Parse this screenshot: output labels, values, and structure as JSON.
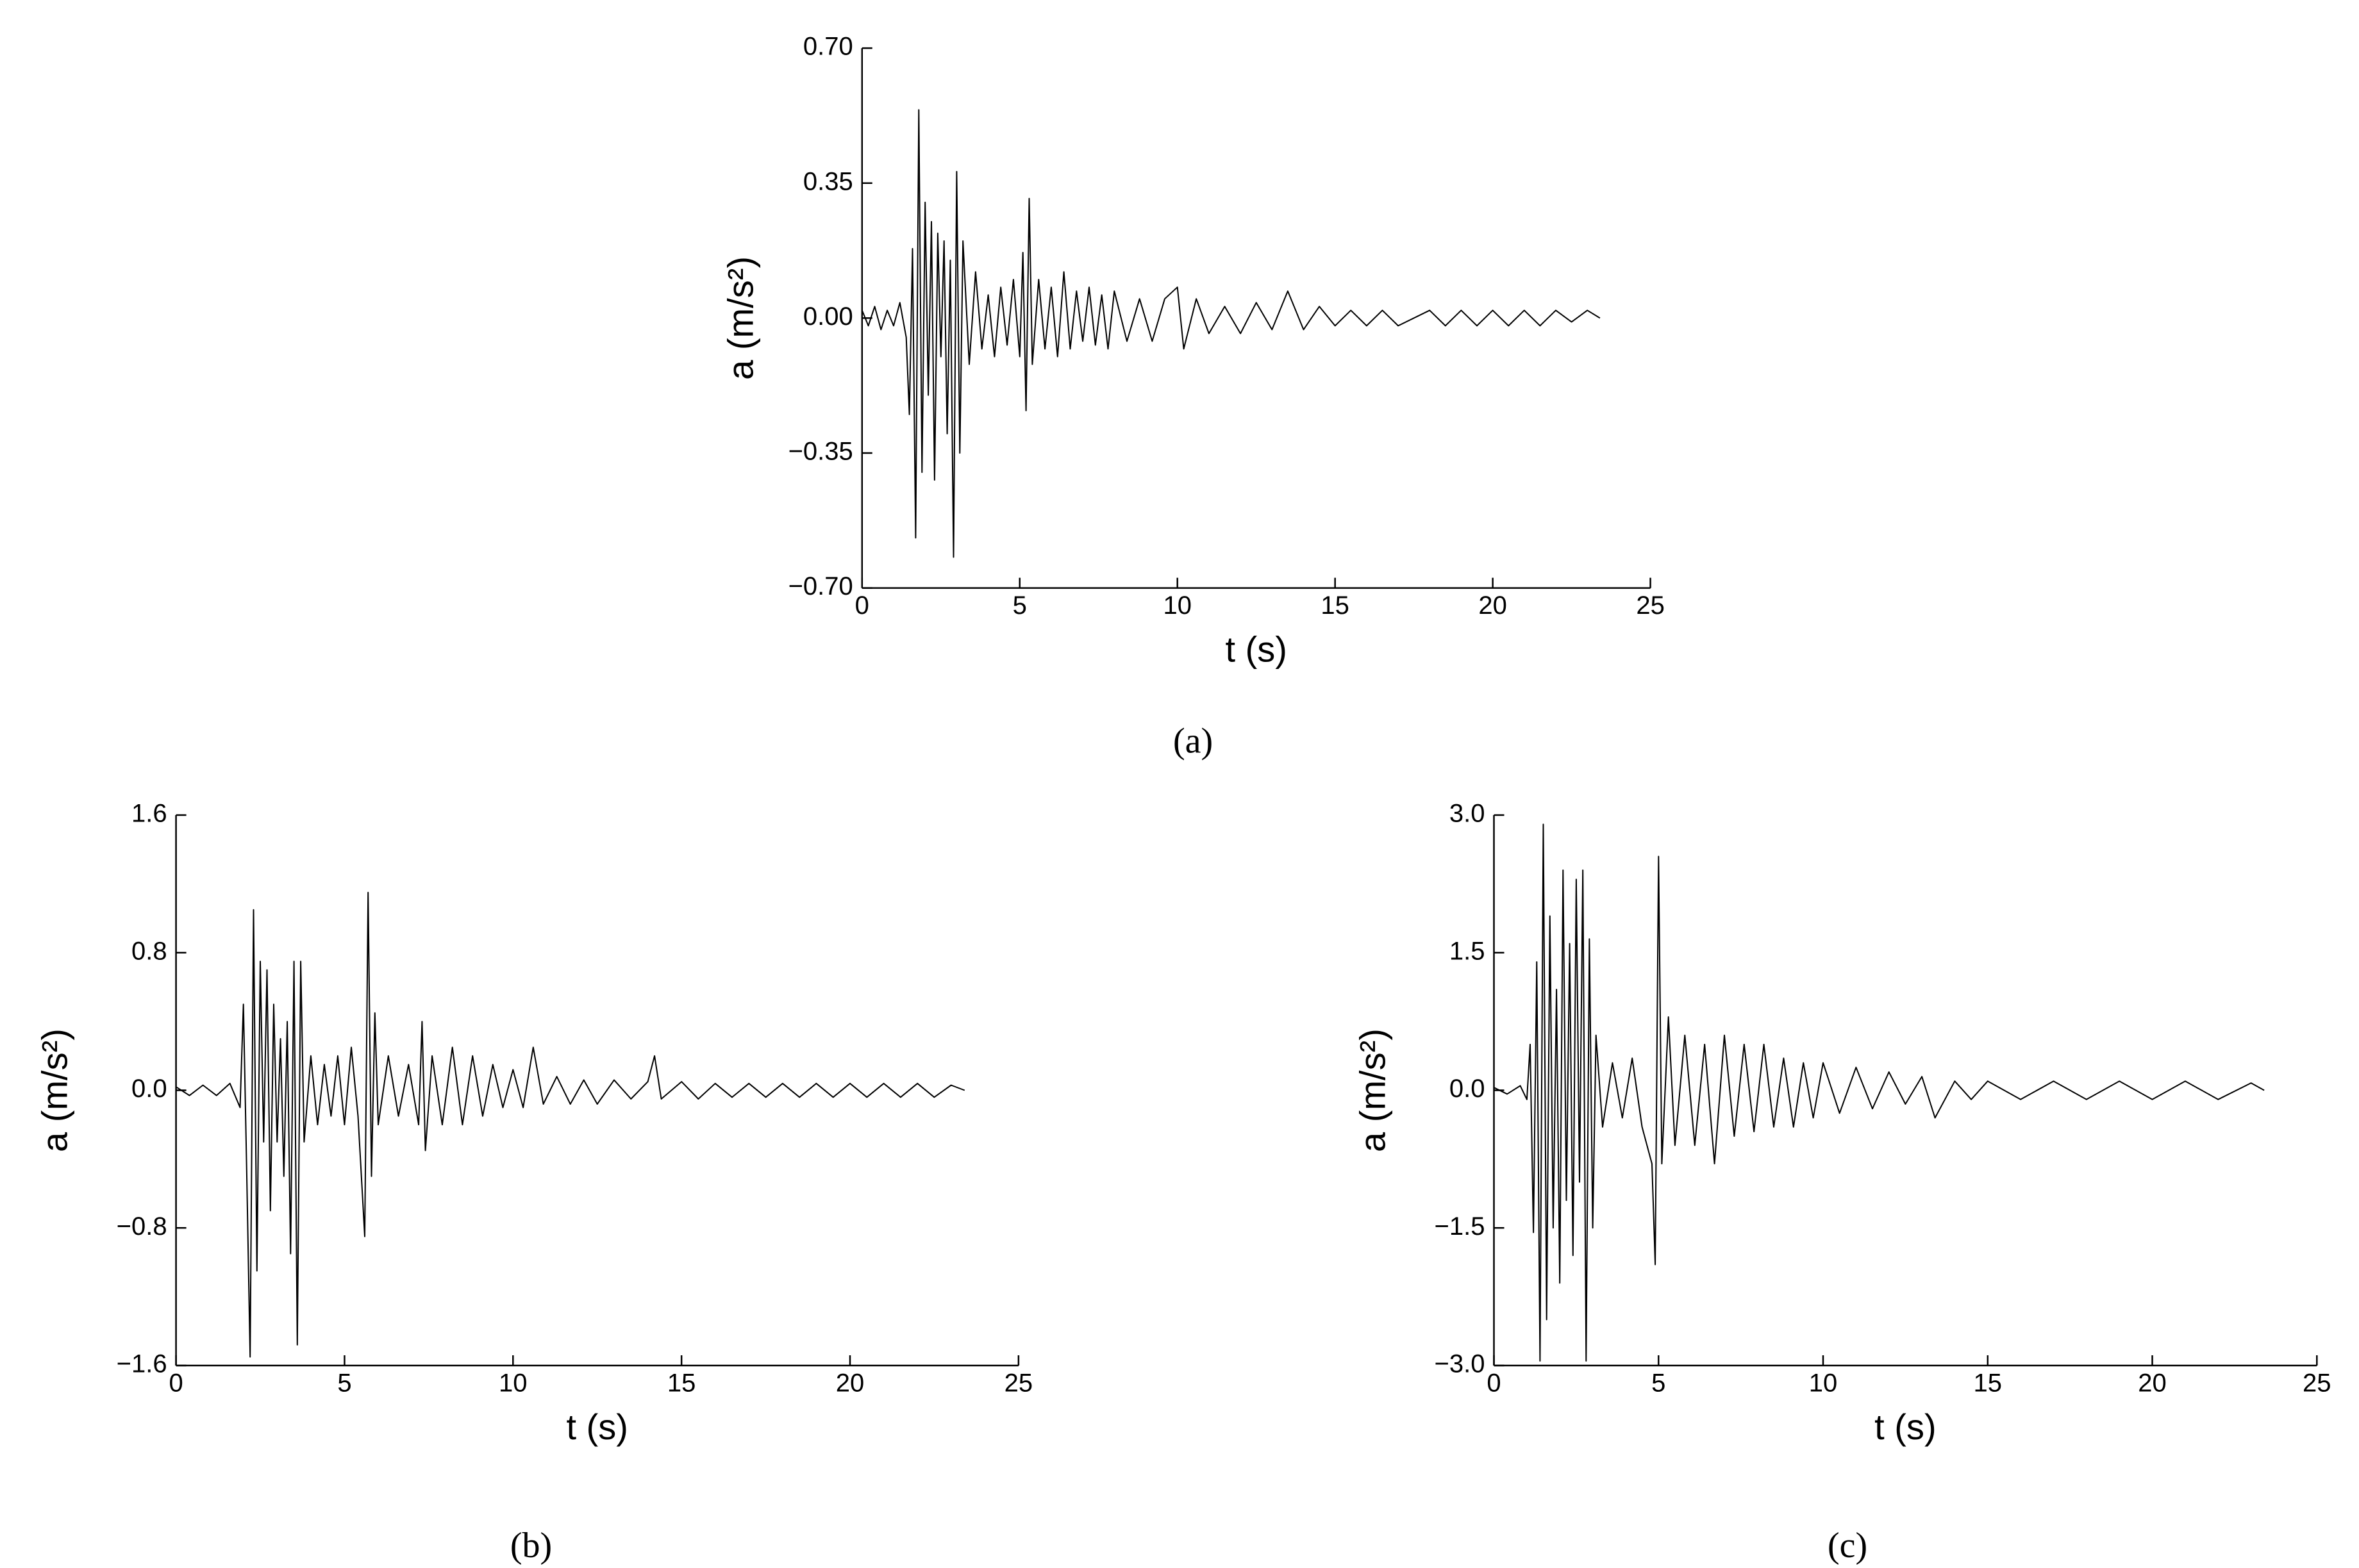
{
  "chart_data": [
    {
      "type": "line",
      "caption": "(a)",
      "x_label": "t (s)",
      "y_label": "a (m/s²)",
      "color": "#000000",
      "xlim": [
        0,
        25
      ],
      "xticks": [
        0,
        5,
        10,
        15,
        20,
        25
      ],
      "ylim": [
        -0.7,
        0.7
      ],
      "yticks": [
        {
          "value": -0.7,
          "label": "−0.70"
        },
        {
          "value": -0.35,
          "label": "−0.35"
        },
        {
          "value": 0,
          "label": "0.00"
        },
        {
          "value": 0.35,
          "label": "0.35"
        },
        {
          "value": 0.7,
          "label": "0.70"
        }
      ],
      "x": [
        0,
        0.2,
        0.4,
        0.6,
        0.8,
        1.0,
        1.2,
        1.4,
        1.5,
        1.6,
        1.7,
        1.8,
        1.9,
        2.0,
        2.1,
        2.2,
        2.3,
        2.4,
        2.5,
        2.6,
        2.7,
        2.8,
        2.9,
        3.0,
        3.1,
        3.2,
        3.4,
        3.6,
        3.8,
        4.0,
        4.2,
        4.4,
        4.6,
        4.8,
        5.0,
        5.1,
        5.2,
        5.3,
        5.4,
        5.6,
        5.8,
        6.0,
        6.2,
        6.4,
        6.6,
        6.8,
        7.0,
        7.2,
        7.4,
        7.6,
        7.8,
        8.0,
        8.4,
        8.8,
        9.2,
        9.6,
        10.0,
        10.2,
        10.6,
        11.0,
        11.5,
        12.0,
        12.5,
        13.0,
        13.5,
        14.0,
        14.5,
        15,
        15.5,
        16,
        16.5,
        17,
        18,
        18.5,
        19,
        19.5,
        20,
        20.5,
        21,
        21.5,
        22,
        22.5,
        23,
        23.4
      ],
      "values": [
        0.02,
        -0.02,
        0.03,
        -0.03,
        0.02,
        -0.02,
        0.04,
        -0.05,
        -0.25,
        0.18,
        -0.57,
        0.54,
        -0.4,
        0.3,
        -0.2,
        0.25,
        -0.42,
        0.22,
        -0.1,
        0.2,
        -0.3,
        0.15,
        -0.62,
        0.38,
        -0.35,
        0.2,
        -0.12,
        0.12,
        -0.08,
        0.06,
        -0.1,
        0.08,
        -0.07,
        0.1,
        -0.1,
        0.17,
        -0.24,
        0.31,
        -0.12,
        0.1,
        -0.08,
        0.08,
        -0.1,
        0.12,
        -0.08,
        0.07,
        -0.06,
        0.08,
        -0.07,
        0.06,
        -0.08,
        0.07,
        -0.06,
        0.05,
        -0.06,
        0.05,
        0.08,
        -0.08,
        0.05,
        -0.04,
        0.03,
        -0.04,
        0.04,
        -0.03,
        0.07,
        -0.03,
        0.03,
        -0.02,
        0.02,
        -0.02,
        0.02,
        -0.02,
        0.02,
        -0.02,
        0.02,
        -0.02,
        0.02,
        -0.02,
        0.02,
        -0.02,
        0.02,
        -0.01,
        0.02,
        0
      ]
    },
    {
      "type": "line",
      "caption": "(b)",
      "x_label": "t (s)",
      "y_label": "a (m/s²)",
      "color": "#000000",
      "xlim": [
        0,
        25
      ],
      "xticks": [
        0,
        5,
        10,
        15,
        20,
        25
      ],
      "ylim": [
        -1.6,
        1.6
      ],
      "yticks": [
        {
          "value": -1.6,
          "label": "−1.6"
        },
        {
          "value": -0.8,
          "label": "−0.8"
        },
        {
          "value": 0,
          "label": "0.0"
        },
        0.8,
        1.6
      ],
      "x": [
        0,
        0.4,
        0.8,
        1.2,
        1.6,
        1.9,
        2.0,
        2.1,
        2.2,
        2.3,
        2.4,
        2.5,
        2.6,
        2.7,
        2.8,
        2.9,
        3.0,
        3.1,
        3.2,
        3.3,
        3.4,
        3.5,
        3.6,
        3.7,
        3.8,
        4.0,
        4.2,
        4.4,
        4.6,
        4.8,
        5.0,
        5.2,
        5.4,
        5.6,
        5.7,
        5.8,
        5.9,
        6.0,
        6.3,
        6.6,
        6.9,
        7.2,
        7.3,
        7.4,
        7.6,
        7.9,
        8.2,
        8.5,
        8.8,
        9.1,
        9.4,
        9.7,
        10.0,
        10.3,
        10.6,
        10.9,
        11.3,
        11.7,
        12.1,
        12.5,
        13,
        13.5,
        14,
        14.2,
        14.4,
        15,
        15.5,
        16,
        16.5,
        17,
        17.5,
        18,
        18.5,
        19,
        19.5,
        20,
        20.5,
        21,
        21.5,
        22,
        22.5,
        23,
        23.4
      ],
      "values": [
        0.02,
        -0.03,
        0.03,
        -0.03,
        0.04,
        -0.1,
        0.5,
        -0.5,
        -1.55,
        1.05,
        -1.05,
        0.75,
        -0.3,
        0.7,
        -0.7,
        0.5,
        -0.3,
        0.3,
        -0.5,
        0.4,
        -0.95,
        0.75,
        -1.48,
        0.75,
        -0.3,
        0.2,
        -0.2,
        0.15,
        -0.15,
        0.2,
        -0.2,
        0.25,
        -0.15,
        -0.85,
        1.15,
        -0.5,
        0.45,
        -0.2,
        0.2,
        -0.15,
        0.15,
        -0.2,
        0.4,
        -0.35,
        0.2,
        -0.2,
        0.25,
        -0.2,
        0.2,
        -0.15,
        0.15,
        -0.1,
        0.12,
        -0.1,
        0.25,
        -0.08,
        0.08,
        -0.08,
        0.06,
        -0.08,
        0.06,
        -0.05,
        0.05,
        0.2,
        -0.05,
        0.05,
        -0.05,
        0.04,
        -0.04,
        0.04,
        -0.04,
        0.04,
        -0.04,
        0.04,
        -0.04,
        0.04,
        -0.04,
        0.04,
        -0.04,
        0.04,
        -0.04,
        0.03,
        0
      ]
    },
    {
      "type": "line",
      "caption": "(c)",
      "x_label": "t (s)",
      "y_label": "a (m/s²)",
      "color": "#000000",
      "xlim": [
        0,
        25
      ],
      "xticks": [
        0,
        5,
        10,
        15,
        20,
        25
      ],
      "ylim": [
        -3,
        3
      ],
      "yticks": [
        {
          "value": -3,
          "label": "−3.0"
        },
        {
          "value": -1.5,
          "label": "−1.5"
        },
        {
          "value": 0,
          "label": "0.0"
        },
        1.5,
        {
          "value": 3,
          "label": "3.0"
        }
      ],
      "x": [
        0,
        0.4,
        0.8,
        1.0,
        1.1,
        1.2,
        1.3,
        1.4,
        1.5,
        1.6,
        1.7,
        1.8,
        1.9,
        2.0,
        2.1,
        2.2,
        2.3,
        2.4,
        2.5,
        2.6,
        2.7,
        2.8,
        2.9,
        3.0,
        3.1,
        3.3,
        3.6,
        3.9,
        4.2,
        4.5,
        4.8,
        4.9,
        5.0,
        5.1,
        5.3,
        5.5,
        5.8,
        6.1,
        6.4,
        6.7,
        7.0,
        7.3,
        7.6,
        7.9,
        8.2,
        8.5,
        8.8,
        9.1,
        9.4,
        9.7,
        10.0,
        10.5,
        11,
        11.5,
        12,
        12.5,
        13,
        13.4,
        14,
        14.5,
        15,
        16,
        17,
        18,
        19,
        20,
        21,
        22,
        23,
        23.4
      ],
      "values": [
        0.03,
        -0.04,
        0.05,
        -0.1,
        0.5,
        -1.55,
        1.4,
        -2.95,
        2.9,
        -2.5,
        1.9,
        -1.5,
        1.1,
        -2.1,
        2.4,
        -1.2,
        1.6,
        -1.8,
        2.3,
        -1.0,
        2.4,
        -2.95,
        1.65,
        -1.5,
        0.6,
        -0.4,
        0.3,
        -0.3,
        0.35,
        -0.4,
        -0.8,
        -1.9,
        2.55,
        -0.8,
        0.8,
        -0.6,
        0.6,
        -0.6,
        0.5,
        -0.8,
        0.6,
        -0.5,
        0.5,
        -0.45,
        0.5,
        -0.4,
        0.35,
        -0.4,
        0.3,
        -0.3,
        0.3,
        -0.25,
        0.25,
        -0.2,
        0.2,
        -0.15,
        0.15,
        -0.3,
        0.1,
        -0.1,
        0.1,
        -0.1,
        0.1,
        -0.1,
        0.1,
        -0.1,
        0.1,
        -0.1,
        0.08,
        0
      ]
    }
  ]
}
